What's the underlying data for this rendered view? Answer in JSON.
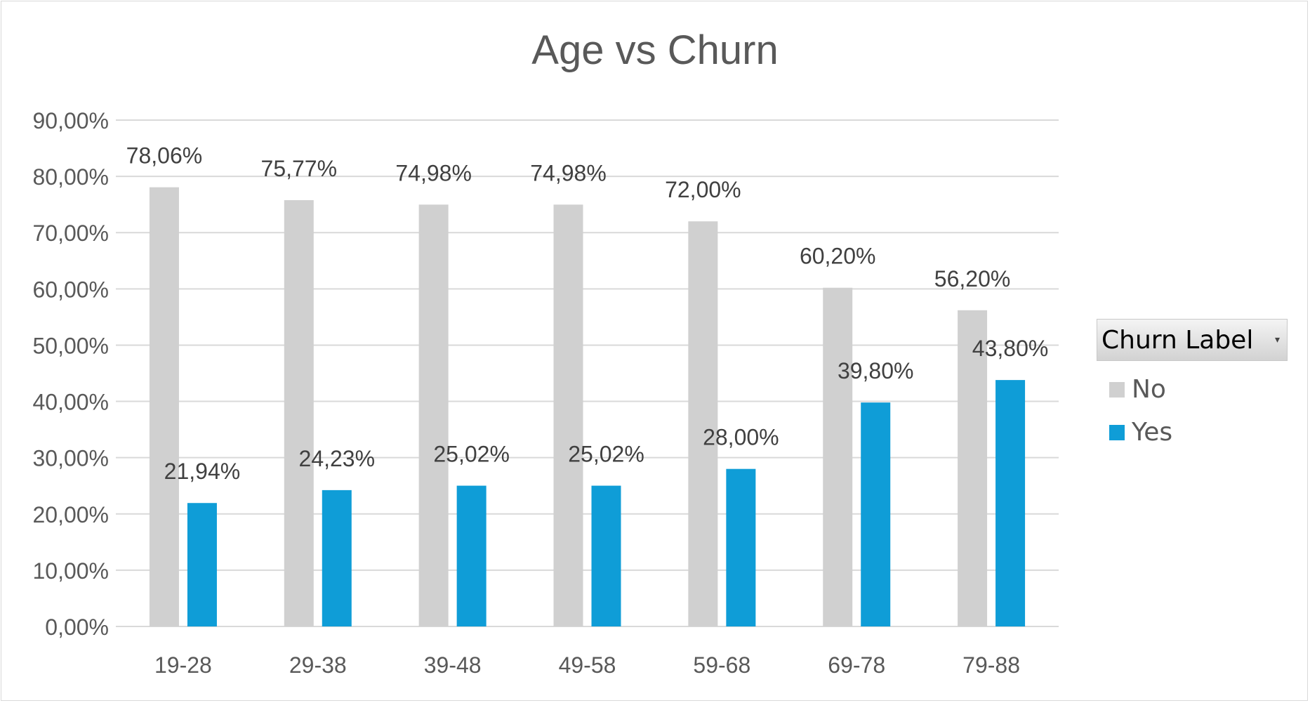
{
  "colors": {
    "No": "#d0d0d0",
    "Yes": "#0f9dd7",
    "axis_text": "#595959",
    "grid": "#d9d9d9"
  },
  "legend": {
    "header": "Churn Label",
    "dropdown_icon": "dropdown-arrow-icon"
  },
  "chart_data": {
    "type": "bar",
    "title": "Age vs Churn",
    "xlabel": "",
    "ylabel": "",
    "categories": [
      "19-28",
      "29-38",
      "39-48",
      "49-58",
      "59-68",
      "69-78",
      "79-88"
    ],
    "series": [
      {
        "name": "No",
        "values": [
          78.06,
          75.77,
          74.98,
          74.98,
          72.0,
          60.2,
          56.2
        ],
        "labels": [
          "78,06%",
          "75,77%",
          "74,98%",
          "74,98%",
          "72,00%",
          "60,20%",
          "56,20%"
        ]
      },
      {
        "name": "Yes",
        "values": [
          21.94,
          24.23,
          25.02,
          25.02,
          28.0,
          39.8,
          43.8
        ],
        "labels": [
          "21,94%",
          "24,23%",
          "25,02%",
          "25,02%",
          "28,00%",
          "39,80%",
          "43,80%"
        ]
      }
    ],
    "ylim": [
      0,
      90
    ],
    "yticks": [
      "0,00%",
      "10,00%",
      "20,00%",
      "30,00%",
      "40,00%",
      "50,00%",
      "60,00%",
      "70,00%",
      "80,00%",
      "90,00%"
    ],
    "grid": true,
    "legend_position": "right"
  }
}
